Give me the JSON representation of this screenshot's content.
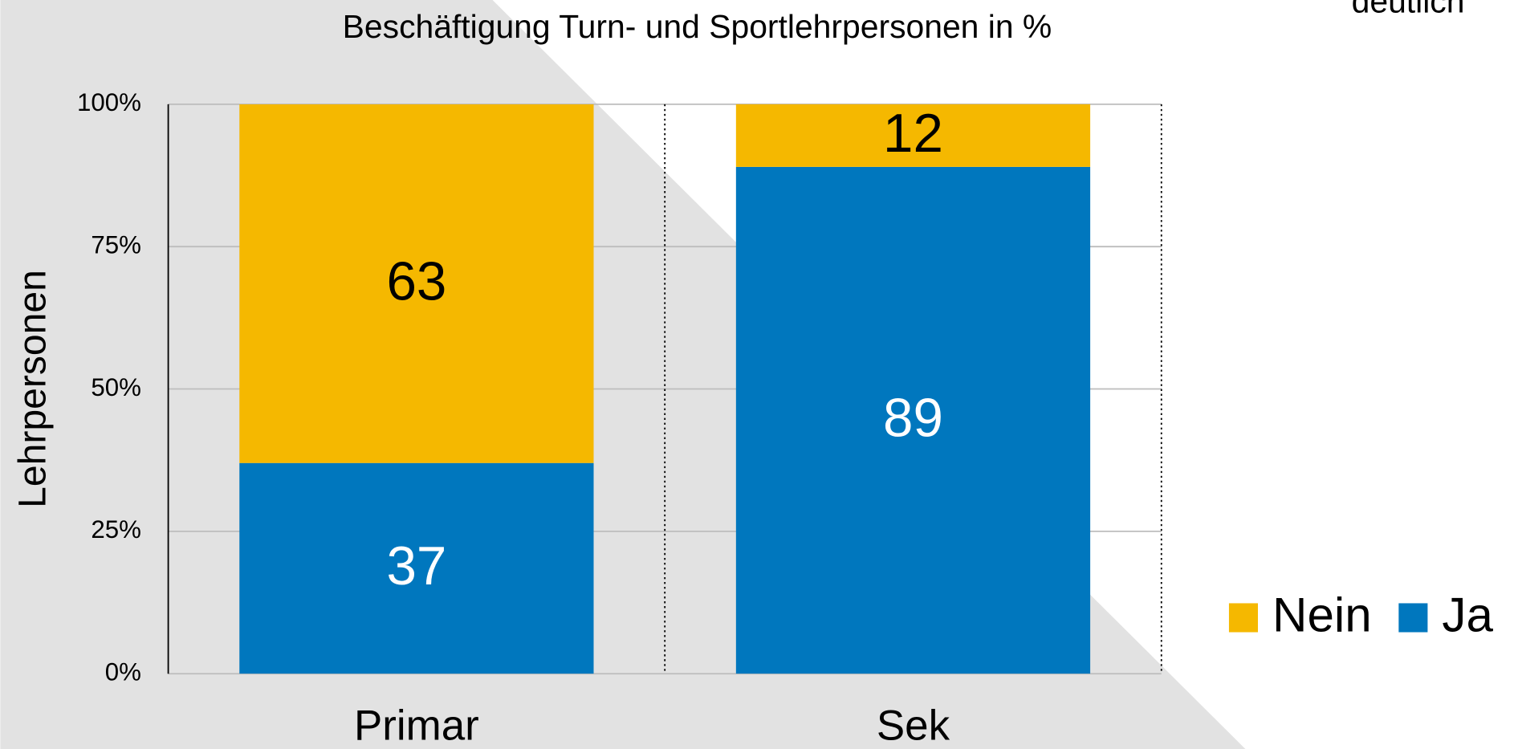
{
  "chart_data": {
    "type": "stacked_bar",
    "title": "Beschäftigung Turn- und Sportlehrpersonen in %",
    "annotation": "deutlich",
    "ylabel": "Lehrpersonen",
    "categories": [
      "Primar",
      "Sek"
    ],
    "series": [
      {
        "name": "Ja",
        "color": "#0077be",
        "label_color": "#ffffff",
        "values": [
          37,
          89
        ]
      },
      {
        "name": "Nein",
        "color": "#f5b800",
        "label_color": "#000000",
        "values": [
          63,
          12
        ]
      }
    ],
    "legend_order": [
      1,
      0
    ],
    "ylim": [
      0,
      100
    ],
    "yticks": [
      {
        "value": 0,
        "label": "0%"
      },
      {
        "value": 25,
        "label": "25%"
      },
      {
        "value": 50,
        "label": "50%"
      },
      {
        "value": 75,
        "label": "75%"
      },
      {
        "value": 100,
        "label": "100%"
      }
    ],
    "grid": true,
    "legend": "right"
  }
}
